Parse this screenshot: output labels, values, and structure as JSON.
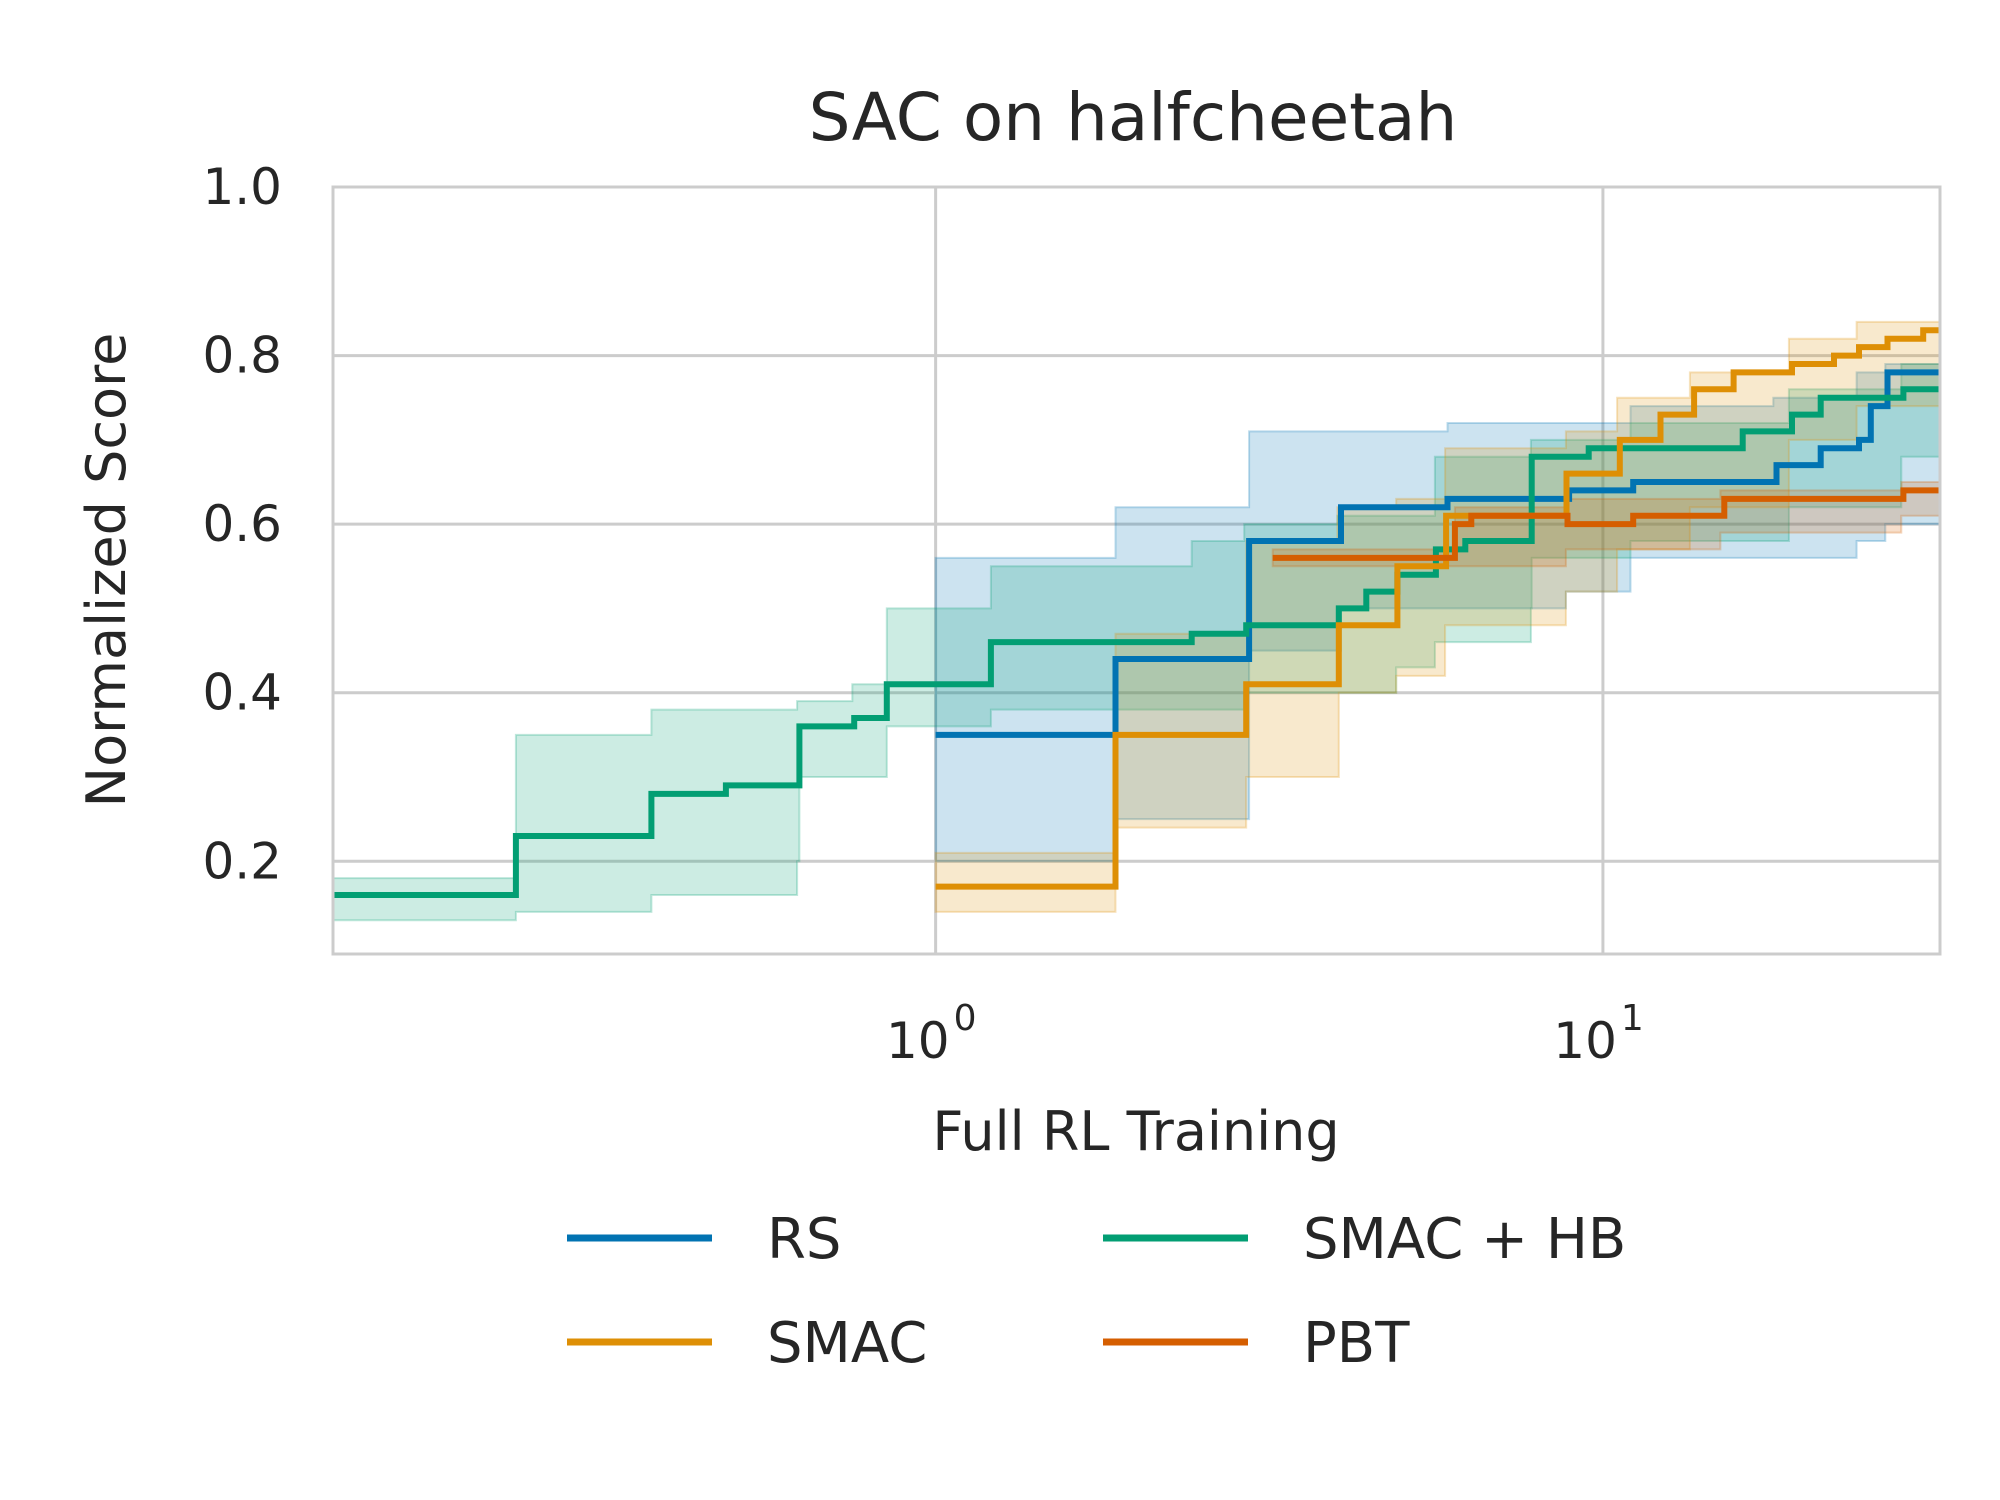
{
  "chart_data": {
    "type": "line",
    "title": "SAC on halfcheetah",
    "xlabel": "Full RL Training",
    "ylabel": "Normalized Score",
    "xscale": "log",
    "xlim": [
      0.125,
      32
    ],
    "ylim": [
      0.09,
      1.0
    ],
    "yticks": [
      0.2,
      0.4,
      0.6,
      0.8,
      1.0
    ],
    "ytick_labels": [
      "0.2",
      "0.4",
      "0.6",
      "0.8",
      "1.0"
    ],
    "xticks": [
      1,
      10
    ],
    "xtick_base": [
      "10",
      "10"
    ],
    "xtick_exp": [
      "0",
      "1"
    ],
    "grid": true,
    "legend_position": "below plot, 2 columns",
    "series": [
      {
        "name": "RS",
        "color": "#0173b2",
        "points": [
          [
            1.0,
            0.35
          ],
          [
            1.16,
            0.35
          ],
          [
            1.85,
            0.35
          ],
          [
            1.86,
            0.44
          ],
          [
            2.9,
            0.44
          ],
          [
            2.95,
            0.58
          ],
          [
            4.0,
            0.58
          ],
          [
            4.05,
            0.62
          ],
          [
            5.8,
            0.62
          ],
          [
            5.85,
            0.63
          ],
          [
            8.8,
            0.63
          ],
          [
            8.9,
            0.64
          ],
          [
            11.0,
            0.64
          ],
          [
            11.1,
            0.65
          ],
          [
            18.0,
            0.65
          ],
          [
            18.2,
            0.67
          ],
          [
            21.0,
            0.67
          ],
          [
            21.2,
            0.69
          ],
          [
            24.0,
            0.69
          ],
          [
            24.2,
            0.7
          ],
          [
            25.0,
            0.7
          ],
          [
            25.2,
            0.74
          ],
          [
            26.5,
            0.74
          ],
          [
            26.7,
            0.78
          ],
          [
            32.0,
            0.78
          ]
        ],
        "band_lower": [
          [
            1.0,
            0.2
          ],
          [
            1.85,
            0.2
          ],
          [
            1.86,
            0.25
          ],
          [
            2.9,
            0.25
          ],
          [
            2.95,
            0.45
          ],
          [
            4.0,
            0.45
          ],
          [
            4.05,
            0.5
          ],
          [
            8.8,
            0.52
          ],
          [
            11.0,
            0.56
          ],
          [
            24.0,
            0.58
          ],
          [
            26.5,
            0.6
          ],
          [
            32.0,
            0.62
          ]
        ],
        "band_upper": [
          [
            1.0,
            0.56
          ],
          [
            1.85,
            0.56
          ],
          [
            1.86,
            0.62
          ],
          [
            2.9,
            0.62
          ],
          [
            2.95,
            0.71
          ],
          [
            5.8,
            0.71
          ],
          [
            5.85,
            0.72
          ],
          [
            11.0,
            0.74
          ],
          [
            18.0,
            0.75
          ],
          [
            24.0,
            0.78
          ],
          [
            26.5,
            0.79
          ],
          [
            32.0,
            0.81
          ]
        ]
      },
      {
        "name": "SMAC + HB",
        "color": "#029e73",
        "points": [
          [
            0.125,
            0.16
          ],
          [
            0.23,
            0.16
          ],
          [
            0.235,
            0.23
          ],
          [
            0.37,
            0.23
          ],
          [
            0.375,
            0.28
          ],
          [
            0.48,
            0.28
          ],
          [
            0.485,
            0.29
          ],
          [
            0.62,
            0.29
          ],
          [
            0.625,
            0.36
          ],
          [
            0.75,
            0.36
          ],
          [
            0.755,
            0.37
          ],
          [
            0.84,
            0.37
          ],
          [
            0.845,
            0.41
          ],
          [
            1.2,
            0.41
          ],
          [
            1.21,
            0.46
          ],
          [
            2.4,
            0.46
          ],
          [
            2.42,
            0.47
          ],
          [
            2.9,
            0.47
          ],
          [
            2.92,
            0.48
          ],
          [
            4.0,
            0.48
          ],
          [
            4.02,
            0.5
          ],
          [
            4.4,
            0.5
          ],
          [
            4.42,
            0.52
          ],
          [
            4.9,
            0.52
          ],
          [
            4.92,
            0.54
          ],
          [
            5.6,
            0.54
          ],
          [
            5.62,
            0.57
          ],
          [
            6.2,
            0.57
          ],
          [
            6.22,
            0.58
          ],
          [
            7.8,
            0.58
          ],
          [
            7.82,
            0.68
          ],
          [
            9.5,
            0.68
          ],
          [
            9.52,
            0.69
          ],
          [
            16.0,
            0.69
          ],
          [
            16.2,
            0.71
          ],
          [
            19.0,
            0.71
          ],
          [
            19.2,
            0.73
          ],
          [
            21.0,
            0.73
          ],
          [
            21.2,
            0.75
          ],
          [
            28.0,
            0.75
          ],
          [
            28.2,
            0.76
          ],
          [
            32.0,
            0.76
          ]
        ],
        "band_lower": [
          [
            0.125,
            0.13
          ],
          [
            0.23,
            0.13
          ],
          [
            0.235,
            0.14
          ],
          [
            0.37,
            0.14
          ],
          [
            0.375,
            0.16
          ],
          [
            0.62,
            0.2
          ],
          [
            0.625,
            0.3
          ],
          [
            0.84,
            0.3
          ],
          [
            0.845,
            0.36
          ],
          [
            1.2,
            0.36
          ],
          [
            1.21,
            0.38
          ],
          [
            2.9,
            0.4
          ],
          [
            4.0,
            0.4
          ],
          [
            4.9,
            0.43
          ],
          [
            5.6,
            0.46
          ],
          [
            7.8,
            0.5
          ],
          [
            7.82,
            0.56
          ],
          [
            11.0,
            0.58
          ],
          [
            19.0,
            0.62
          ],
          [
            28.0,
            0.68
          ],
          [
            32.0,
            0.71
          ]
        ],
        "band_upper": [
          [
            0.125,
            0.18
          ],
          [
            0.23,
            0.18
          ],
          [
            0.235,
            0.35
          ],
          [
            0.37,
            0.35
          ],
          [
            0.375,
            0.38
          ],
          [
            0.62,
            0.39
          ],
          [
            0.75,
            0.41
          ],
          [
            0.84,
            0.41
          ],
          [
            0.845,
            0.5
          ],
          [
            1.2,
            0.5
          ],
          [
            1.21,
            0.55
          ],
          [
            2.4,
            0.55
          ],
          [
            2.42,
            0.58
          ],
          [
            2.9,
            0.6
          ],
          [
            4.0,
            0.61
          ],
          [
            5.6,
            0.68
          ],
          [
            7.8,
            0.7
          ],
          [
            11.0,
            0.72
          ],
          [
            19.0,
            0.76
          ],
          [
            28.0,
            0.79
          ],
          [
            32.0,
            0.8
          ]
        ]
      },
      {
        "name": "SMAC",
        "color": "#de8f05",
        "points": [
          [
            1.0,
            0.17
          ],
          [
            1.85,
            0.17
          ],
          [
            1.86,
            0.35
          ],
          [
            2.9,
            0.35
          ],
          [
            2.92,
            0.41
          ],
          [
            4.0,
            0.41
          ],
          [
            4.02,
            0.48
          ],
          [
            4.9,
            0.48
          ],
          [
            4.92,
            0.55
          ],
          [
            5.8,
            0.55
          ],
          [
            5.82,
            0.61
          ],
          [
            8.8,
            0.61
          ],
          [
            8.82,
            0.66
          ],
          [
            10.5,
            0.66
          ],
          [
            10.6,
            0.7
          ],
          [
            12.0,
            0.7
          ],
          [
            12.2,
            0.73
          ],
          [
            13.5,
            0.73
          ],
          [
            13.7,
            0.76
          ],
          [
            15.5,
            0.76
          ],
          [
            15.7,
            0.78
          ],
          [
            19.0,
            0.78
          ],
          [
            19.2,
            0.79
          ],
          [
            22.0,
            0.79
          ],
          [
            22.2,
            0.8
          ],
          [
            24.0,
            0.8
          ],
          [
            24.2,
            0.81
          ],
          [
            26.5,
            0.81
          ],
          [
            26.7,
            0.82
          ],
          [
            30.0,
            0.82
          ],
          [
            30.2,
            0.83
          ],
          [
            32.0,
            0.83
          ]
        ],
        "band_lower": [
          [
            1.0,
            0.14
          ],
          [
            1.85,
            0.14
          ],
          [
            1.86,
            0.24
          ],
          [
            2.9,
            0.24
          ],
          [
            2.92,
            0.3
          ],
          [
            4.0,
            0.3
          ],
          [
            4.02,
            0.4
          ],
          [
            4.9,
            0.42
          ],
          [
            5.8,
            0.48
          ],
          [
            8.8,
            0.52
          ],
          [
            10.5,
            0.57
          ],
          [
            13.5,
            0.62
          ],
          [
            19.0,
            0.7
          ],
          [
            24.0,
            0.74
          ],
          [
            32.0,
            0.79
          ]
        ],
        "band_upper": [
          [
            1.0,
            0.21
          ],
          [
            1.85,
            0.21
          ],
          [
            1.86,
            0.47
          ],
          [
            2.9,
            0.47
          ],
          [
            2.92,
            0.58
          ],
          [
            4.0,
            0.62
          ],
          [
            4.9,
            0.63
          ],
          [
            5.8,
            0.69
          ],
          [
            8.8,
            0.71
          ],
          [
            10.5,
            0.75
          ],
          [
            13.5,
            0.78
          ],
          [
            19.0,
            0.82
          ],
          [
            24.0,
            0.84
          ],
          [
            32.0,
            0.86
          ]
        ]
      },
      {
        "name": "PBT",
        "color": "#d55e00",
        "points": [
          [
            3.2,
            0.56
          ],
          [
            5.9,
            0.56
          ],
          [
            6.0,
            0.6
          ],
          [
            6.3,
            0.6
          ],
          [
            6.35,
            0.61
          ],
          [
            8.8,
            0.61
          ],
          [
            8.85,
            0.6
          ],
          [
            11.0,
            0.6
          ],
          [
            11.1,
            0.61
          ],
          [
            15.0,
            0.61
          ],
          [
            15.2,
            0.63
          ],
          [
            28.0,
            0.63
          ],
          [
            28.2,
            0.64
          ],
          [
            32.0,
            0.64
          ]
        ],
        "band_lower": [
          [
            3.2,
            0.55
          ],
          [
            5.9,
            0.55
          ],
          [
            8.8,
            0.57
          ],
          [
            15.0,
            0.59
          ],
          [
            28.0,
            0.61
          ],
          [
            32.0,
            0.62
          ]
        ],
        "band_upper": [
          [
            3.2,
            0.57
          ],
          [
            5.9,
            0.57
          ],
          [
            6.0,
            0.62
          ],
          [
            8.8,
            0.63
          ],
          [
            15.0,
            0.64
          ],
          [
            28.0,
            0.65
          ],
          [
            32.0,
            0.66
          ]
        ]
      }
    ],
    "legend": [
      {
        "label": "RS",
        "color": "#0173b2"
      },
      {
        "label": "SMAC + HB",
        "color": "#029e73"
      },
      {
        "label": "SMAC",
        "color": "#de8f05"
      },
      {
        "label": "PBT",
        "color": "#d55e00"
      }
    ]
  }
}
